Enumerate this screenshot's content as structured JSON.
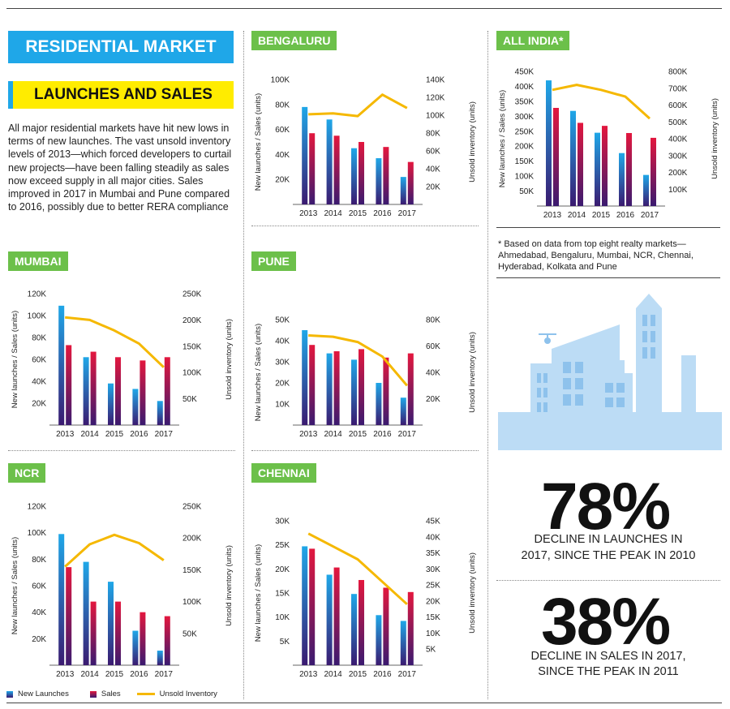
{
  "header": {
    "banner": "RESIDENTIAL MARKET",
    "subbanner": "LAUNCHES AND SALES",
    "intro": "All major residential markets have hit new lows in terms of new launches. The vast unsold inventory levels of 2013—which forced developers to curtail new projects—have been falling steadily as sales now exceed supply in all major cities. Sales improved in 2017 in Mumbai and Pune compared to 2016, possibly due to better RERA compliance"
  },
  "colors": {
    "launches": "#1fa7e8",
    "sales": "#e3173e",
    "inventory": "#f5b800",
    "dark": "#3a1a70"
  },
  "footnote": "* Based on data from top eight realty markets—Ahmedabad, Bengaluru, Mumbai, NCR, Chennai, Hyderabad, Kolkata and Pune",
  "stats": [
    {
      "value": "78%",
      "caption_l1": "DECLINE IN LAUNCHES IN",
      "caption_l2": "2017, SINCE THE PEAK IN 2010"
    },
    {
      "value": "38%",
      "caption_l1": "DECLINE IN SALES IN 2017,",
      "caption_l2": "SINCE THE PEAK IN 2011"
    }
  ],
  "legend": {
    "launches": "New Launches",
    "sales": "Sales",
    "inventory": "Unsold Inventory"
  },
  "chart_data": [
    {
      "type": "bar",
      "title": "BENGALURU",
      "categories": [
        "2013",
        "2014",
        "2015",
        "2016",
        "2017"
      ],
      "ylabel": "New launches / Sales (units)",
      "y2label": "Unsold inventory (units)",
      "ylim": [
        0,
        100000
      ],
      "y2lim": [
        0,
        140000
      ],
      "yticks": [
        "20K",
        "40K",
        "60K",
        "80K",
        "100K"
      ],
      "y2ticks": [
        "20K",
        "40K",
        "60K",
        "80K",
        "100K",
        "120K",
        "140K"
      ],
      "series": [
        {
          "name": "New Launches",
          "values": [
            78000,
            68000,
            45000,
            37000,
            22000
          ]
        },
        {
          "name": "Sales",
          "values": [
            57000,
            55000,
            50000,
            46000,
            34000
          ]
        },
        {
          "name": "Unsold Inventory",
          "type": "line",
          "axis": "y2",
          "values": [
            101000,
            102000,
            99000,
            123000,
            108000
          ]
        }
      ]
    },
    {
      "type": "bar",
      "title": "ALL INDIA*",
      "categories": [
        "2013",
        "2014",
        "2015",
        "2016",
        "2017"
      ],
      "ylabel": "New launches / Sales (units)",
      "y2label": "Unsold inventory (units)",
      "ylim": [
        0,
        450000
      ],
      "y2lim": [
        0,
        800000
      ],
      "yticks": [
        "50K",
        "100K",
        "150K",
        "200K",
        "250K",
        "300K",
        "350K",
        "400K",
        "450K"
      ],
      "y2ticks": [
        "100K",
        "200K",
        "300K",
        "400K",
        "500K",
        "600K",
        "700K",
        "800K"
      ],
      "series": [
        {
          "name": "New Launches",
          "values": [
            420000,
            318000,
            245000,
            177000,
            104000
          ]
        },
        {
          "name": "Sales",
          "values": [
            328000,
            278000,
            268000,
            244000,
            228000
          ]
        },
        {
          "name": "Unsold Inventory",
          "type": "line",
          "axis": "y2",
          "values": [
            690000,
            720000,
            690000,
            650000,
            520000
          ]
        }
      ]
    },
    {
      "type": "bar",
      "title": "MUMBAI",
      "categories": [
        "2013",
        "2014",
        "2015",
        "2016",
        "2017"
      ],
      "ylabel": "New launches / Sales (units)",
      "y2label": "Unsold inventory (units)",
      "ylim": [
        0,
        120000
      ],
      "y2lim": [
        0,
        250000
      ],
      "yticks": [
        "20K",
        "40K",
        "60K",
        "80K",
        "100K",
        "120K"
      ],
      "y2ticks": [
        "50K",
        "100K",
        "150K",
        "200K",
        "250K"
      ],
      "series": [
        {
          "name": "New Launches",
          "values": [
            109000,
            62000,
            38000,
            33000,
            22000
          ]
        },
        {
          "name": "Sales",
          "values": [
            73000,
            67000,
            62000,
            59000,
            62000
          ]
        },
        {
          "name": "Unsold Inventory",
          "type": "line",
          "axis": "y2",
          "values": [
            205000,
            200000,
            180000,
            155000,
            110000
          ]
        }
      ]
    },
    {
      "type": "bar",
      "title": "PUNE",
      "categories": [
        "2013",
        "2014",
        "2015",
        "2016",
        "2017"
      ],
      "ylabel": "New launches / Sales (units)",
      "y2label": "Unsold inventory (units)",
      "ylim": [
        0,
        50000
      ],
      "y2lim": [
        0,
        80000
      ],
      "yticks": [
        "10K",
        "20K",
        "30K",
        "40K",
        "50K"
      ],
      "y2ticks": [
        "20K",
        "40K",
        "60K",
        "80K"
      ],
      "series": [
        {
          "name": "New Launches",
          "values": [
            45000,
            34000,
            31000,
            20000,
            13000
          ]
        },
        {
          "name": "Sales",
          "values": [
            38000,
            35000,
            36000,
            32000,
            34000
          ]
        },
        {
          "name": "Unsold Inventory",
          "type": "line",
          "axis": "y2",
          "values": [
            68000,
            67000,
            63000,
            52000,
            30000
          ]
        }
      ]
    },
    {
      "type": "bar",
      "title": "NCR",
      "categories": [
        "2013",
        "2014",
        "2015",
        "2016",
        "2017"
      ],
      "ylabel": "New launches / Sales (units)",
      "y2label": "Unsold inventory (units)",
      "ylim": [
        0,
        120000
      ],
      "y2lim": [
        0,
        250000
      ],
      "yticks": [
        "20K",
        "40K",
        "60K",
        "80K",
        "100K",
        "120K"
      ],
      "y2ticks": [
        "50K",
        "100K",
        "150K",
        "200K",
        "250K"
      ],
      "series": [
        {
          "name": "New Launches",
          "values": [
            99000,
            78000,
            63000,
            26000,
            11000
          ]
        },
        {
          "name": "Sales",
          "values": [
            74000,
            48000,
            48000,
            40000,
            37000
          ]
        },
        {
          "name": "Unsold Inventory",
          "type": "line",
          "axis": "y2",
          "values": [
            155000,
            190000,
            205000,
            192000,
            165000
          ]
        }
      ]
    },
    {
      "type": "bar",
      "title": "CHENNAI",
      "categories": [
        "2013",
        "2014",
        "2015",
        "2016",
        "2017"
      ],
      "ylabel": "New launches / Sales (units)",
      "y2label": "Unsold inventory (units)",
      "ylim": [
        0,
        30000
      ],
      "y2lim": [
        0,
        45000
      ],
      "yticks": [
        "5K",
        "10K",
        "15K",
        "20K",
        "25K",
        "30K"
      ],
      "y2ticks": [
        "5K",
        "10K",
        "15K",
        "20K",
        "25K",
        "30K",
        "35K",
        "40K",
        "45K"
      ],
      "series": [
        {
          "name": "New Launches",
          "values": [
            24700,
            18800,
            14800,
            10400,
            9200
          ]
        },
        {
          "name": "Sales",
          "values": [
            24200,
            20300,
            17700,
            16100,
            15200
          ]
        },
        {
          "name": "Unsold Inventory",
          "type": "line",
          "axis": "y2",
          "values": [
            41000,
            37000,
            33000,
            26000,
            19000
          ]
        }
      ]
    }
  ]
}
